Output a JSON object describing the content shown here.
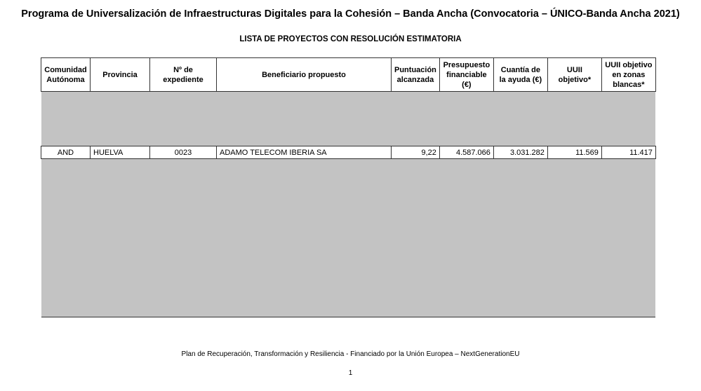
{
  "document": {
    "title": "Programa de Universalización de Infraestructuras Digitales para la Cohesión – Banda Ancha (Convocatoria – ÚNICO-Banda Ancha 2021)",
    "subtitle": "LISTA DE PROYECTOS CON RESOLUCIÓN ESTIMATORIA",
    "footer": "Plan de Recuperación, Transformación y Resiliencia - Financiado por la Unión Europea – NextGenerationEU",
    "page_number": "1"
  },
  "table": {
    "headers": [
      "Comunidad Autónoma",
      "Provincia",
      "Nº de expediente",
      "Beneficiario propuesto",
      "Puntuación alcanzada",
      "Presupuesto financiable (€)",
      "Cuantía de la ayuda (€)",
      "UUII objetivo*",
      "UUII objetivo en zonas blancas*"
    ],
    "rows": [
      [
        "AND",
        "HUELVA",
        "0023",
        "ADAMO TELECOM IBERIA SA",
        "9,22",
        "4.587.066",
        "3.031.282",
        "11.569",
        "11.417"
      ]
    ],
    "redaction_color": "#c3c3c3"
  }
}
